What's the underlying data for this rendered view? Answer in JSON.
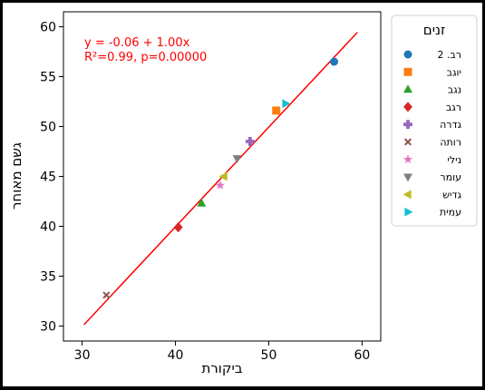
{
  "chart_data": {
    "type": "scatter",
    "xlabel": "ביקורת",
    "ylabel": "גשם מאוחר",
    "xlim": [
      28,
      62
    ],
    "ylim": [
      28.5,
      61.5
    ],
    "xticks": [
      30,
      40,
      50,
      60
    ],
    "yticks": [
      30,
      35,
      40,
      45,
      50,
      55,
      60
    ],
    "grid": false,
    "annotation": [
      "y = -0.06 + 1.00x",
      "R²=0.99, p=0.00000"
    ],
    "legend": {
      "title": "זנים",
      "placement": "outside-right"
    },
    "fit_line": {
      "intercept": -0.06,
      "slope": 1.0,
      "x_range": [
        30.2,
        59.5
      ],
      "color": "#ff0000"
    },
    "series": [
      {
        "name": "רב. 2",
        "marker": "circle",
        "color": "#1f77b4",
        "points": [
          [
            57.0,
            56.5
          ]
        ]
      },
      {
        "name": "יוגב",
        "marker": "square",
        "color": "#ff7f0e",
        "points": [
          [
            50.8,
            51.6
          ]
        ]
      },
      {
        "name": "נגב",
        "marker": "triangle-up",
        "color": "#2ca02c",
        "points": [
          [
            42.8,
            42.3
          ]
        ]
      },
      {
        "name": "רגב",
        "marker": "diamond",
        "color": "#d62728",
        "points": [
          [
            40.3,
            39.9
          ]
        ]
      },
      {
        "name": "גדרה",
        "marker": "plus",
        "color": "#9467bd",
        "points": [
          [
            48.0,
            48.5
          ]
        ]
      },
      {
        "name": "רותה",
        "marker": "x",
        "color": "#8c564b",
        "points": [
          [
            32.6,
            33.1
          ]
        ]
      },
      {
        "name": "נילי",
        "marker": "star",
        "color": "#e377c2",
        "points": [
          [
            44.8,
            44.1
          ]
        ]
      },
      {
        "name": "עומר",
        "marker": "triangle-down",
        "color": "#7f7f7f",
        "points": [
          [
            46.6,
            46.8
          ]
        ]
      },
      {
        "name": "גדיש",
        "marker": "triangle-left",
        "color": "#bcbd22",
        "points": [
          [
            45.2,
            45.0
          ]
        ]
      },
      {
        "name": "עמית",
        "marker": "triangle-right",
        "color": "#17becf",
        "points": [
          [
            51.8,
            52.3
          ]
        ]
      }
    ]
  }
}
